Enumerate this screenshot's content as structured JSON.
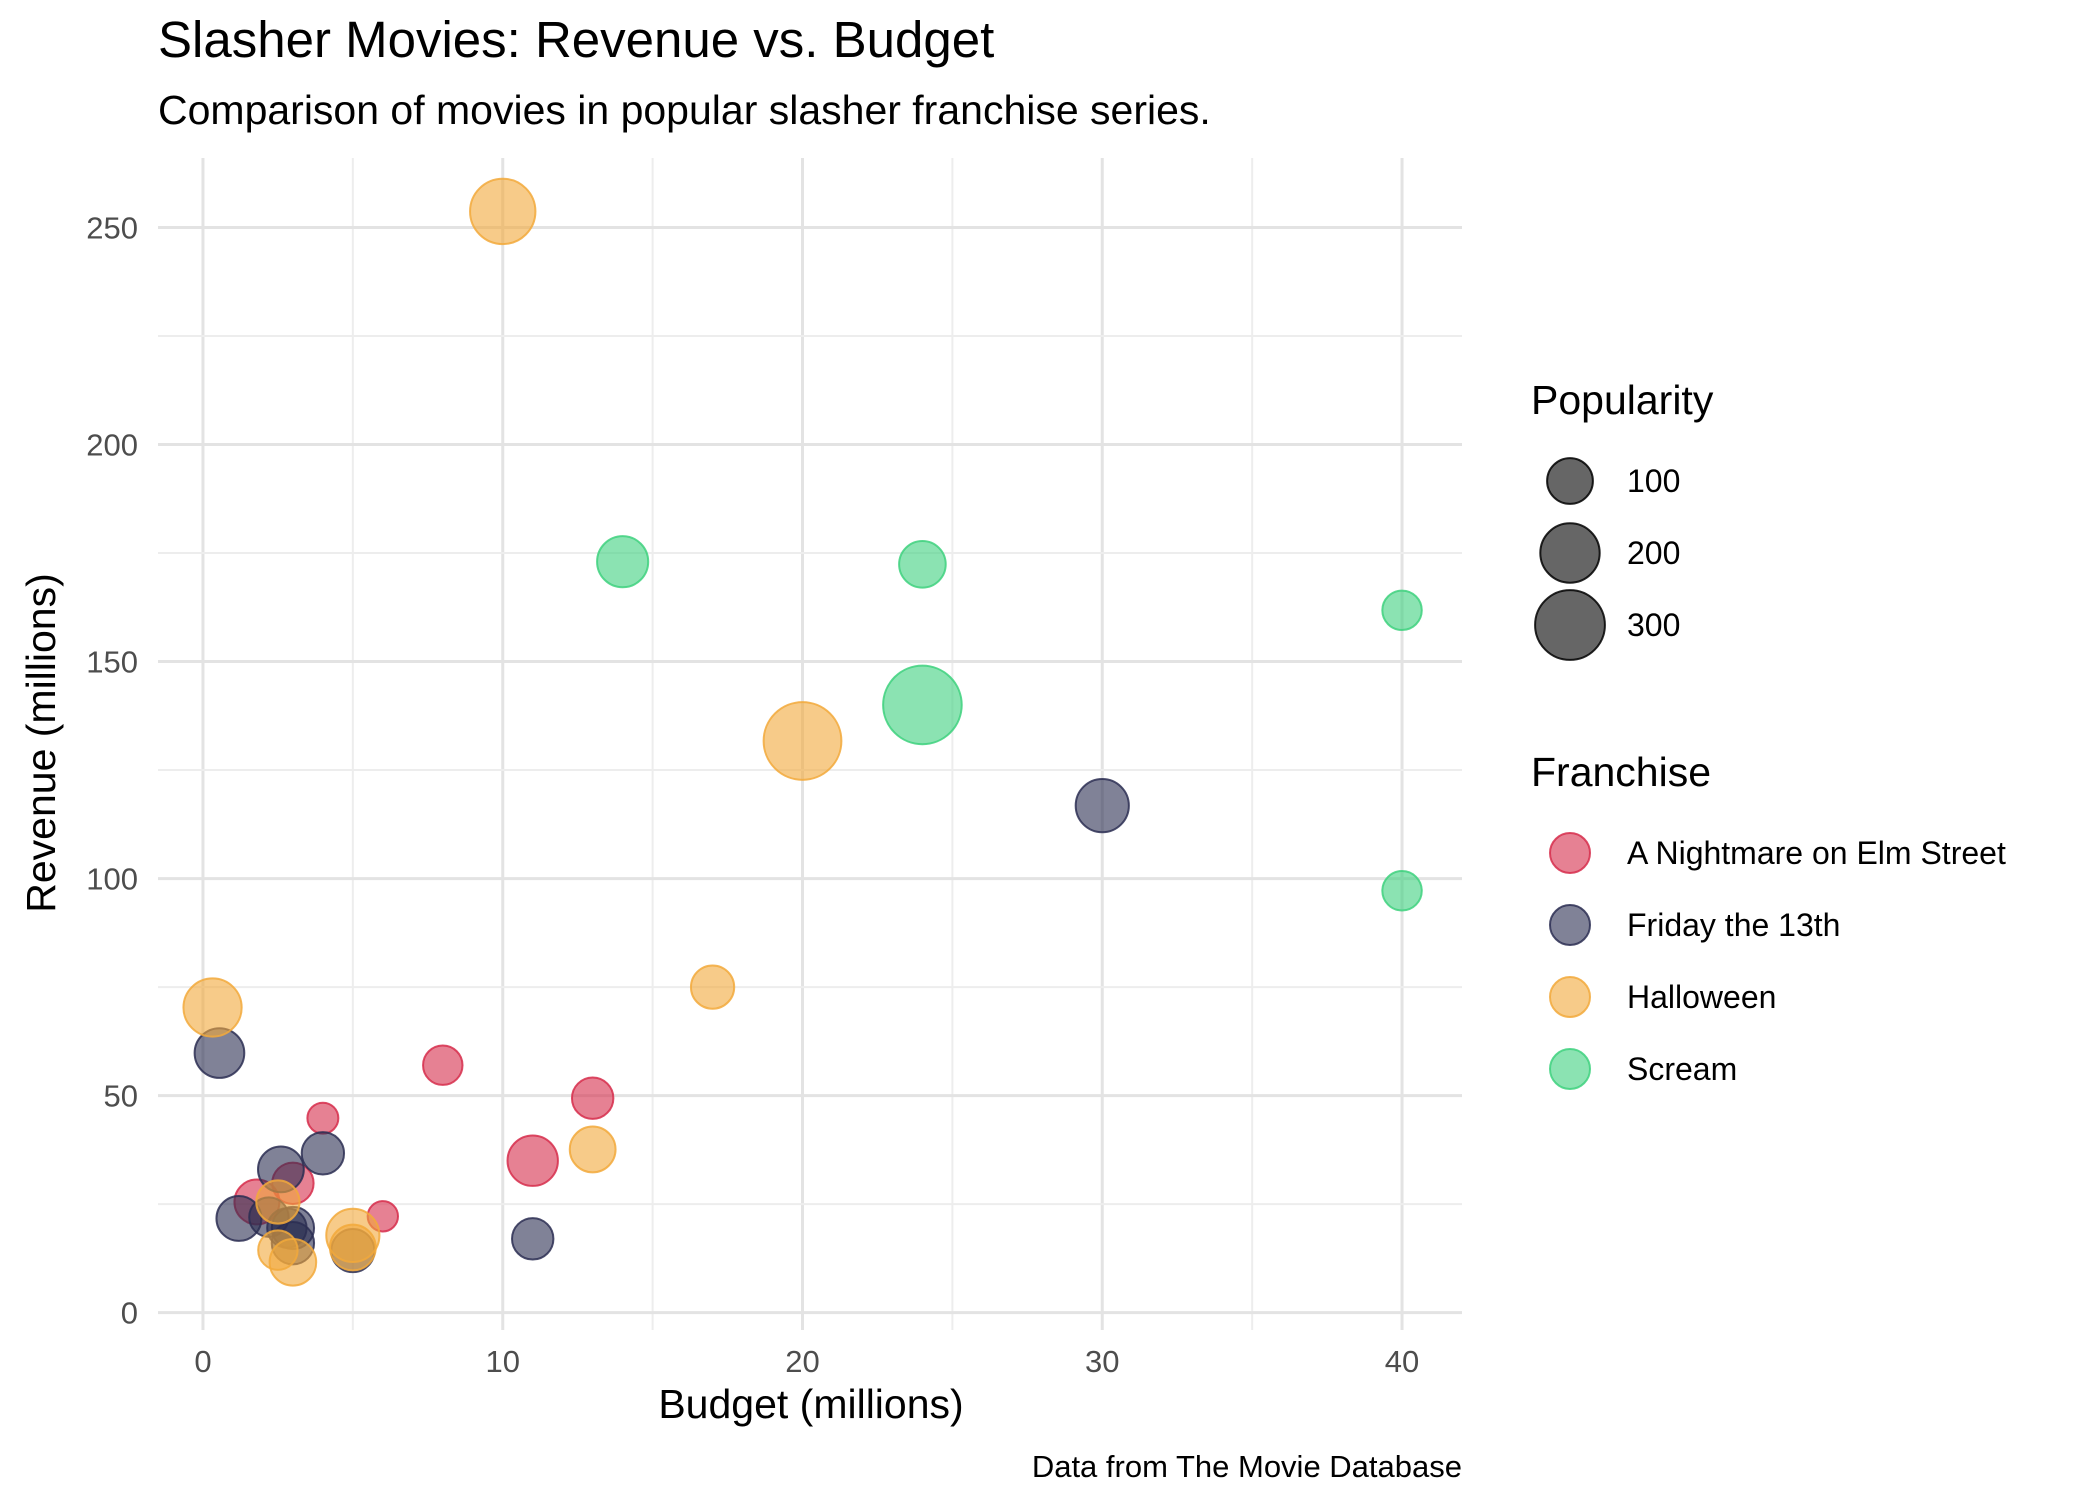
{
  "chart_data": {
    "type": "scatter",
    "title": "Slasher Movies: Revenue vs. Budget",
    "subtitle": "Comparison of movies in popular slasher franchise series.",
    "caption": "Data from The Movie Database",
    "xlabel": "Budget (millions)",
    "ylabel": "Revenue (millions)",
    "xlim": [
      -1.5,
      42
    ],
    "ylim": [
      -4,
      266
    ],
    "xticks": [
      0,
      10,
      20,
      30,
      40
    ],
    "yticks": [
      0,
      50,
      100,
      150,
      200,
      250
    ],
    "grid": true,
    "size_legend": {
      "title": "Popularity",
      "entries": [
        {
          "label": "100",
          "value": 100
        },
        {
          "label": "200",
          "value": 200
        },
        {
          "label": "300",
          "value": 300
        }
      ]
    },
    "color_legend": {
      "title": "Franchise",
      "placement": "right"
    },
    "series": [
      {
        "name": "A Nightmare on Elm Street",
        "color": "#d62d4b",
        "points": [
          {
            "x": 1.8,
            "y": 25.5,
            "size": 95
          },
          {
            "x": 3.0,
            "y": 29.8,
            "size": 75
          },
          {
            "x": 4.0,
            "y": 44.8,
            "size": 30
          },
          {
            "x": 6.0,
            "y": 22.2,
            "size": 28
          },
          {
            "x": 8.0,
            "y": 57.0,
            "size": 65
          },
          {
            "x": 11.0,
            "y": 35.0,
            "size": 130
          },
          {
            "x": 13.0,
            "y": 49.4,
            "size": 75
          }
        ]
      },
      {
        "name": "Friday the 13th",
        "color": "#2b2e52",
        "points": [
          {
            "x": 0.55,
            "y": 59.8,
            "size": 125
          },
          {
            "x": 1.2,
            "y": 21.7,
            "size": 95
          },
          {
            "x": 2.2,
            "y": 22.0,
            "size": 65
          },
          {
            "x": 2.6,
            "y": 33.0,
            "size": 100
          },
          {
            "x": 2.8,
            "y": 19.5,
            "size": 65
          },
          {
            "x": 3.0,
            "y": 19.5,
            "size": 80
          },
          {
            "x": 3.0,
            "y": 16.0,
            "size": 80
          },
          {
            "x": 4.0,
            "y": 36.7,
            "size": 80
          },
          {
            "x": 5.0,
            "y": 14.3,
            "size": 85
          },
          {
            "x": 11.0,
            "y": 17.0,
            "size": 75
          },
          {
            "x": 30.0,
            "y": 116.8,
            "size": 150
          }
        ]
      },
      {
        "name": "Halloween",
        "color": "#f2a93b",
        "points": [
          {
            "x": 0.32,
            "y": 70.3,
            "size": 190
          },
          {
            "x": 2.5,
            "y": 14.4,
            "size": 65
          },
          {
            "x": 2.5,
            "y": 25.5,
            "size": 85
          },
          {
            "x": 3.0,
            "y": 11.6,
            "size": 105
          },
          {
            "x": 5.0,
            "y": 17.8,
            "size": 150
          },
          {
            "x": 5.0,
            "y": 15.0,
            "size": 100
          },
          {
            "x": 10.0,
            "y": 253.7,
            "size": 255
          },
          {
            "x": 13.0,
            "y": 37.6,
            "size": 100
          },
          {
            "x": 17.0,
            "y": 75.0,
            "size": 85
          },
          {
            "x": 20.0,
            "y": 131.7,
            "size": 390
          }
        ]
      },
      {
        "name": "Scream",
        "color": "#3ed17e",
        "points": [
          {
            "x": 14.0,
            "y": 173.0,
            "size": 135
          },
          {
            "x": 24.0,
            "y": 172.4,
            "size": 105
          },
          {
            "x": 24.0,
            "y": 140.0,
            "size": 400
          },
          {
            "x": 40.0,
            "y": 161.8,
            "size": 65
          },
          {
            "x": 40.0,
            "y": 97.2,
            "size": 65
          }
        ]
      }
    ]
  }
}
